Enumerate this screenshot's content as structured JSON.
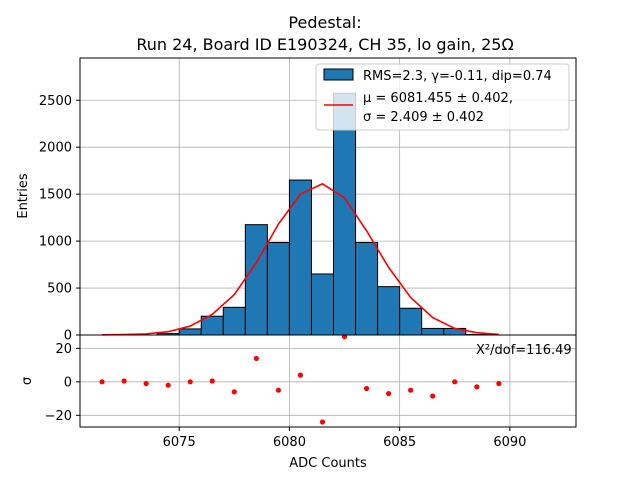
{
  "chart_data": [
    {
      "type": "bar",
      "panel": "histogram",
      "title": "Pedestal:\nRun 24, Board ID E190324, CH 35, lo gain, 25Ω",
      "title_lines": [
        "Pedestal:",
        "Run 24, Board ID E190324, CH 35, lo gain, 25Ω"
      ],
      "xlabel": "ADC Counts",
      "ylabel": "Entries",
      "xlim": [
        6070.5,
        6093.0
      ],
      "ylim": [
        0,
        2950
      ],
      "yticks": [
        0,
        500,
        1000,
        1500,
        2000,
        2500
      ],
      "grid": true,
      "legend_position": "top-right",
      "bin_width": 1,
      "bins": [
        {
          "left": 6074,
          "value": 15
        },
        {
          "left": 6075,
          "value": 65
        },
        {
          "left": 6076,
          "value": 200
        },
        {
          "left": 6077,
          "value": 295
        },
        {
          "left": 6078,
          "value": 1175
        },
        {
          "left": 6079,
          "value": 985
        },
        {
          "left": 6080,
          "value": 1650
        },
        {
          "left": 6081,
          "value": 650
        },
        {
          "left": 6082,
          "value": 2575
        },
        {
          "left": 6083,
          "value": 985
        },
        {
          "left": 6084,
          "value": 515
        },
        {
          "left": 6085,
          "value": 285
        },
        {
          "left": 6086,
          "value": 70
        },
        {
          "left": 6087,
          "value": 70
        },
        {
          "left": 6088,
          "value": 5
        }
      ],
      "fit_line": {
        "x": [
          6071.5,
          6072.5,
          6073.5,
          6074.5,
          6075.5,
          6076.5,
          6077.5,
          6078.5,
          6079.5,
          6080.5,
          6081.5,
          6082.5,
          6083.5,
          6084.5,
          6085.5,
          6086.5,
          6087.5,
          6088.5,
          6089.5
        ],
        "y": [
          2,
          5,
          12,
          35,
          95,
          220,
          430,
          770,
          1180,
          1500,
          1610,
          1460,
          1110,
          720,
          400,
          185,
          70,
          25,
          6
        ]
      },
      "legend": {
        "hist_label": "RMS=2.3, γ=-0.11, dip=0.74",
        "fit_label_line1": "μ = 6081.455 ± 0.402,",
        "fit_label_line2": "σ = 2.409 ± 0.402"
      },
      "colors": {
        "bar": "#1f77b4",
        "fit": "#ff0000",
        "grid": "#b0b0b0"
      }
    },
    {
      "type": "scatter",
      "panel": "residuals",
      "xlabel": "ADC Counts",
      "ylabel": "σ",
      "xlim": [
        6070.5,
        6093.0
      ],
      "ylim": [
        -27,
        28
      ],
      "xticks": [
        6075,
        6080,
        6085,
        6090
      ],
      "yticks": [
        -20,
        0,
        20
      ],
      "grid": true,
      "annotation": "X²/dof=116.49",
      "points": {
        "x": [
          6071.5,
          6072.5,
          6073.5,
          6074.5,
          6075.5,
          6076.5,
          6077.5,
          6078.5,
          6079.5,
          6080.5,
          6081.5,
          6082.5,
          6083.5,
          6084.5,
          6085.5,
          6086.5,
          6087.5,
          6088.5,
          6089.5
        ],
        "y": [
          0,
          0.5,
          -1,
          -2,
          0,
          0.5,
          -6,
          14,
          -5,
          4,
          -24,
          27,
          -4,
          -7,
          -5,
          -8.5,
          0,
          -3,
          -1
        ]
      },
      "colors": {
        "point": "#ff0000",
        "grid": "#b0b0b0"
      }
    }
  ]
}
